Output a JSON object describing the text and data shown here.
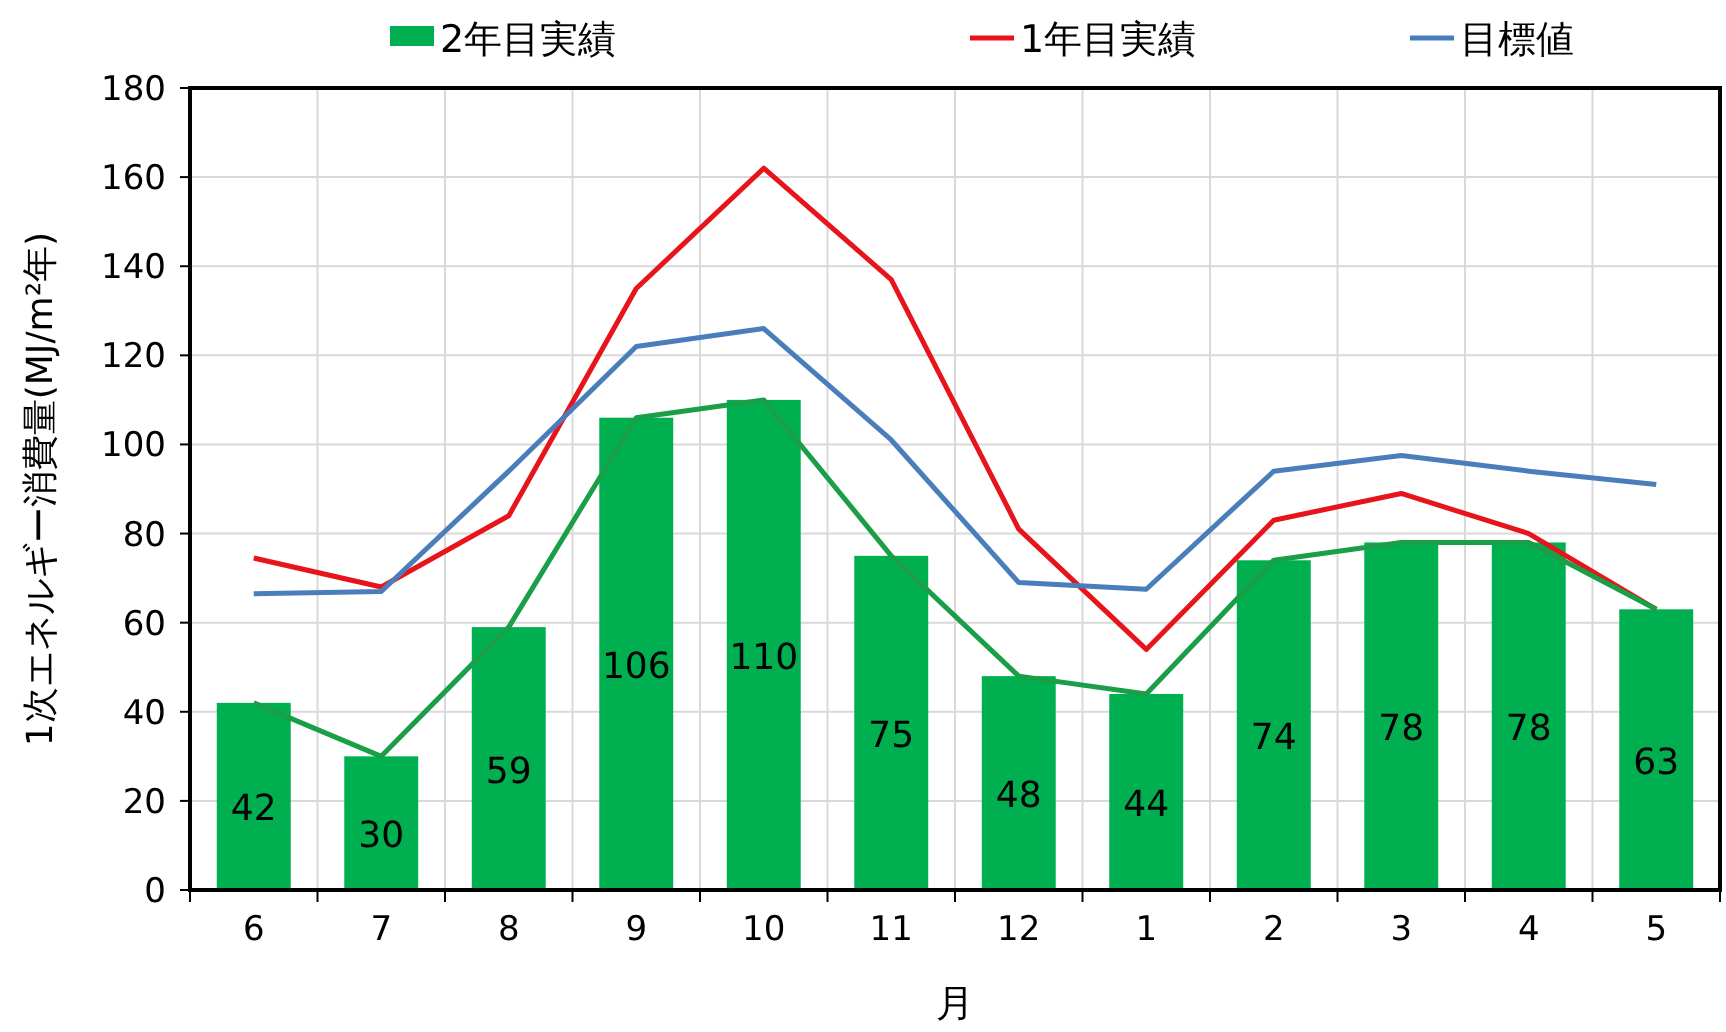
{
  "chart_data": {
    "type": "bar",
    "xlabel": "月",
    "ylabel": "1次エネルギー消費量(MJ/m²年)",
    "categories": [
      "6",
      "7",
      "8",
      "9",
      "10",
      "11",
      "12",
      "1",
      "2",
      "3",
      "4",
      "5"
    ],
    "series": [
      {
        "name": "2年目実績",
        "color": "#00b050",
        "values": [
          42,
          30,
          59,
          106,
          110,
          75,
          48,
          44,
          74,
          78,
          78,
          63
        ],
        "data_labels": true
      },
      {
        "name": "1年目実績",
        "type": "line",
        "color": "#e8141c",
        "values": [
          74.5,
          68,
          84,
          135,
          162,
          137,
          81,
          54,
          83,
          89,
          80,
          63
        ]
      },
      {
        "name": "目標値",
        "type": "line",
        "color": "#4a7ebb",
        "values": [
          66.5,
          67,
          94,
          122,
          126,
          101,
          69,
          67.5,
          94,
          97.5,
          94,
          91
        ]
      },
      {
        "type": "line",
        "color": "#1a9e48",
        "values": [
          42,
          30,
          59,
          106,
          110,
          75,
          48,
          44,
          74,
          78,
          78,
          63
        ]
      }
    ],
    "ylim": [
      0,
      180
    ],
    "yticks": [
      0,
      20,
      40,
      60,
      80,
      100,
      120,
      140,
      160,
      180
    ],
    "grid": true,
    "legend": "top"
  }
}
